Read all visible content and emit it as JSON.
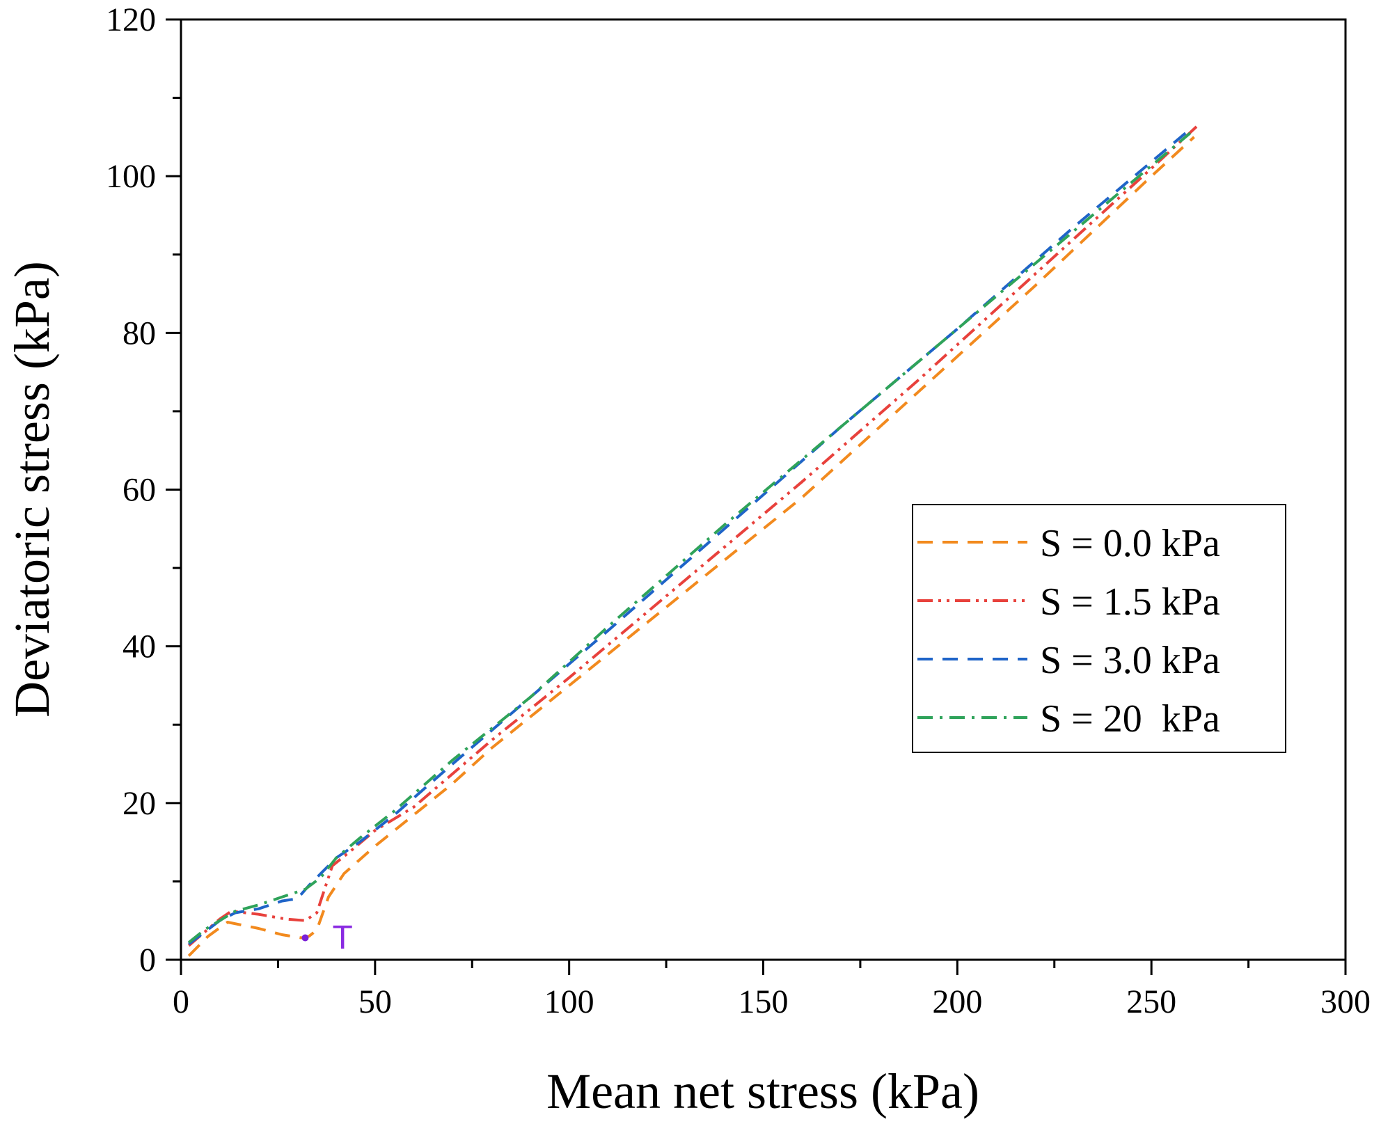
{
  "chart_data": {
    "type": "line",
    "xlabel": "Mean net stress (kPa)",
    "ylabel": "Deviatoric stress (kPa)",
    "xlim": [
      0,
      300
    ],
    "ylim": [
      0,
      120
    ],
    "x_ticks": [
      0,
      50,
      100,
      150,
      200,
      250,
      300
    ],
    "y_ticks": [
      0,
      20,
      40,
      60,
      80,
      100,
      120
    ],
    "grid": false,
    "legend_position": "right",
    "series": [
      {
        "name": "S = 0.0 kPa",
        "color": "#F28A1E",
        "dash": "dash",
        "x": [
          2,
          7,
          12,
          20,
          26,
          31,
          33,
          35,
          38,
          42,
          50,
          60,
          70,
          80,
          100,
          130,
          160,
          190,
          220,
          250,
          261
        ],
        "y": [
          0.5,
          3,
          4.8,
          4,
          3.2,
          2.8,
          3,
          3.8,
          8,
          11,
          14.5,
          18.5,
          22.5,
          27,
          35,
          47,
          59,
          72.5,
          86,
          100,
          105
        ]
      },
      {
        "name": "S = 1.5 kPa",
        "color": "#E8413C",
        "dash": "dashdotdot",
        "x": [
          2,
          6,
          10,
          13,
          20,
          27,
          32,
          35,
          37,
          39,
          44,
          50,
          60,
          80,
          100,
          130,
          160,
          190,
          220,
          250,
          262
        ],
        "y": [
          1.8,
          3.5,
          5.2,
          6.2,
          5.8,
          5.2,
          5,
          6,
          9,
          12,
          14,
          16.5,
          19.5,
          28,
          36,
          48.5,
          61,
          74,
          87.5,
          101,
          106.5
        ]
      },
      {
        "name": "S = 3.0 kPa",
        "color": "#1F64C8",
        "dash": "dash",
        "x": [
          2,
          6,
          10,
          14,
          20,
          26,
          30,
          33,
          36,
          40,
          46,
          55,
          70,
          90,
          110,
          140,
          170,
          200,
          230,
          260
        ],
        "y": [
          2,
          3.5,
          5,
          6,
          6.5,
          7.5,
          7.8,
          9.5,
          11,
          13,
          15,
          18.5,
          25,
          33.5,
          42,
          55,
          68,
          80.5,
          93.5,
          106
        ]
      },
      {
        "name": "S = 20  kPa",
        "color": "#2FA35A",
        "dash": "dashdot",
        "x": [
          2,
          6,
          10,
          14,
          20,
          26,
          32,
          36,
          40,
          46,
          55,
          70,
          90,
          110,
          140,
          170,
          200,
          230,
          260
        ],
        "y": [
          2.2,
          3.8,
          5,
          6.2,
          7,
          8,
          9,
          10.5,
          13,
          15.5,
          19,
          25.5,
          33.5,
          42.5,
          55.5,
          68,
          80.5,
          93,
          105.5
        ]
      }
    ],
    "annotations": [
      {
        "text": "T",
        "x": 39,
        "y": 3,
        "color": "#8A2BE2"
      }
    ],
    "marker_point": {
      "x": 32,
      "y": 2.8,
      "color": "#7A1FD6"
    }
  }
}
